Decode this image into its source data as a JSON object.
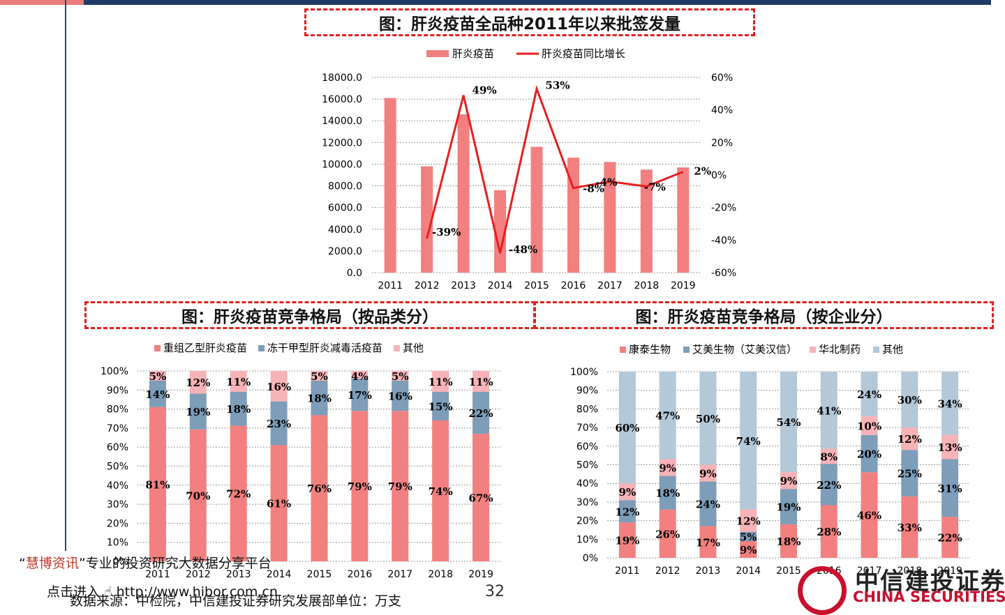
{
  "footer": {
    "quote_open": "“",
    "brand": "慧博资讯",
    "quote_close": "”",
    "slogan": "专业的投资研究大数据分享平台",
    "enter_label": "点击进入",
    "url": "http://www.hibor.com.cn",
    "source": "数据来源：中检院，中信建投证券研究发展部单位：万支",
    "page_number": "32"
  },
  "logo": {
    "cn_text": "中信建投证券",
    "en_text": "CHINA SECURITIES"
  },
  "colors": {
    "pink": "#f28080",
    "red": "#e81e1e",
    "steel": "#7d9db8",
    "lightpink": "#f7b3b8",
    "lightblue": "#b4c8d8",
    "dashed_frame": "#e21f1f"
  },
  "chart_data": [
    {
      "id": "chart1",
      "type": "bar",
      "title": "图：肝炎疫苗全品种2011年以来批签发量",
      "categories": [
        "2011",
        "2012",
        "2013",
        "2014",
        "2015",
        "2016",
        "2017",
        "2018",
        "2019"
      ],
      "series": [
        {
          "name": "肝炎疫苗",
          "type": "bar",
          "axis": "left",
          "color": "#f28080",
          "values": [
            16100,
            9800,
            14600,
            7600,
            11600,
            10600,
            10200,
            9500,
            9700
          ]
        },
        {
          "name": "肝炎疫苗同比增长",
          "type": "line",
          "axis": "right",
          "color": "#e81e1e",
          "values": [
            null,
            -39,
            49,
            -48,
            53,
            -8,
            -4,
            -7,
            2
          ],
          "labels": [
            "",
            "-39%",
            "49%",
            "-48%",
            "53%",
            "-8%",
            "-4%",
            "-7%",
            "2%"
          ]
        }
      ],
      "y_left": {
        "min": 0,
        "max": 18000,
        "ticks": [
          "0.0",
          "2000.0",
          "4000.0",
          "6000.0",
          "8000.0",
          "10000.0",
          "12000.0",
          "14000.0",
          "16000.0",
          "18000.0"
        ]
      },
      "y_right": {
        "min": -60,
        "max": 60,
        "ticks": [
          "-60%",
          "-40%",
          "-20%",
          "0%",
          "20%",
          "40%",
          "60%"
        ]
      },
      "legend": "top-center",
      "grid": true
    },
    {
      "id": "chart2",
      "type": "bar",
      "stacked": true,
      "title": "图：肝炎疫苗竞争格局（按品类分）",
      "categories": [
        "2011",
        "2012",
        "2013",
        "2014",
        "2015",
        "2016",
        "2017",
        "2018",
        "2019"
      ],
      "series": [
        {
          "name": "重组乙型肝炎疫苗",
          "color": "#f28080",
          "values": [
            81,
            70,
            72,
            61,
            76,
            79,
            79,
            74,
            67
          ],
          "labels": [
            "81%",
            "70%",
            "72%",
            "61%",
            "76%",
            "79%",
            "79%",
            "74%",
            "67%"
          ]
        },
        {
          "name": "冻干甲型肝炎减毒活疫苗",
          "color": "#7d9db8",
          "values": [
            14,
            19,
            18,
            23,
            18,
            17,
            16,
            15,
            22
          ],
          "labels": [
            "14%",
            "19%",
            "18%",
            "23%",
            "18%",
            "17%",
            "16%",
            "15%",
            "22%"
          ]
        },
        {
          "name": "其他",
          "color": "#f7b3b8",
          "values": [
            5,
            12,
            11,
            16,
            5,
            4,
            5,
            11,
            11
          ],
          "labels": [
            "5%",
            "12%",
            "11%",
            "16%",
            "5%",
            "4%",
            "5%",
            "11%",
            "11%"
          ]
        }
      ],
      "y_ticks": [
        "0%",
        "10%",
        "20%",
        "30%",
        "40%",
        "50%",
        "60%",
        "70%",
        "80%",
        "90%",
        "100%"
      ],
      "legend": "top-center",
      "grid": true
    },
    {
      "id": "chart3",
      "type": "bar",
      "stacked": true,
      "title": "图：肝炎疫苗竞争格局（按企业分）",
      "categories": [
        "2011",
        "2012",
        "2013",
        "2014",
        "2015",
        "2016",
        "2017",
        "2018",
        "2019"
      ],
      "series": [
        {
          "name": "康泰生物",
          "color": "#f28080",
          "values": [
            19,
            26,
            17,
            9,
            18,
            28,
            46,
            33,
            22
          ],
          "labels": [
            "19%",
            "26%",
            "17%",
            "9%",
            "18%",
            "28%",
            "46%",
            "33%",
            "22%"
          ]
        },
        {
          "name": "艾美生物（艾美汉信）",
          "color": "#7d9db8",
          "values": [
            12,
            18,
            24,
            5,
            19,
            22,
            20,
            25,
            31
          ],
          "labels": [
            "12%",
            "18%",
            "24%",
            "5%",
            "19%",
            "22%",
            "20%",
            "25%",
            "31%"
          ]
        },
        {
          "name": "华北制药",
          "color": "#f7b3b8",
          "values": [
            9,
            9,
            9,
            12,
            9,
            8,
            10,
            12,
            13
          ],
          "labels": [
            "9%",
            "9%",
            "9%",
            "12%",
            "9%",
            "8%",
            "10%",
            "12%",
            "13%"
          ]
        },
        {
          "name": "其他",
          "color": "#b4c8d8",
          "values": [
            60,
            47,
            50,
            74,
            54,
            41,
            24,
            30,
            34
          ],
          "labels": [
            "60%",
            "47%",
            "50%",
            "74%",
            "54%",
            "41%",
            "24%",
            "30%",
            "34%"
          ]
        }
      ],
      "y_ticks": [
        "0%",
        "10%",
        "20%",
        "30%",
        "40%",
        "50%",
        "60%",
        "70%",
        "80%",
        "90%",
        "100%"
      ],
      "legend": "top-center",
      "grid": true
    }
  ]
}
